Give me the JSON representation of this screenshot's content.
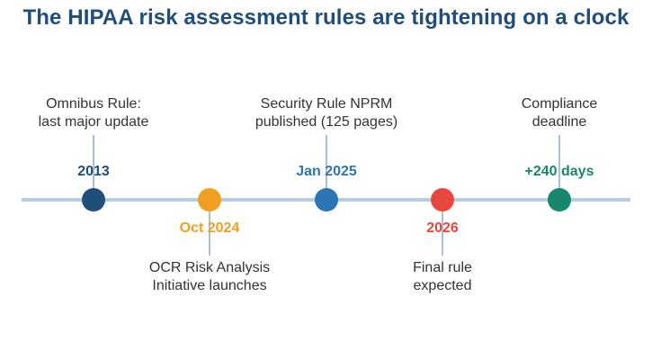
{
  "title": "The HIPAA risk assessment rules are tightening on a clock",
  "colors": {
    "title": "#1f4e79",
    "axis": "#b8cce0"
  },
  "events": [
    {
      "date": "2013",
      "lines": [
        "Omnibus Rule:",
        "last major update"
      ],
      "color": "#1f4e79",
      "position": "above"
    },
    {
      "date": "Oct 2024",
      "lines": [
        "OCR Risk Analysis",
        "Initiative launches"
      ],
      "color": "#f0a020",
      "position": "below"
    },
    {
      "date": "Jan 2025",
      "lines": [
        "Security Rule NPRM",
        "published (125 pages)"
      ],
      "color": "#2e75b6",
      "position": "above"
    },
    {
      "date": "2026",
      "lines": [
        "Final rule",
        "expected"
      ],
      "color": "#e8473c",
      "position": "below"
    },
    {
      "date": "+240 days",
      "lines": [
        "Compliance",
        "deadline"
      ],
      "color": "#17876d",
      "position": "above"
    }
  ]
}
